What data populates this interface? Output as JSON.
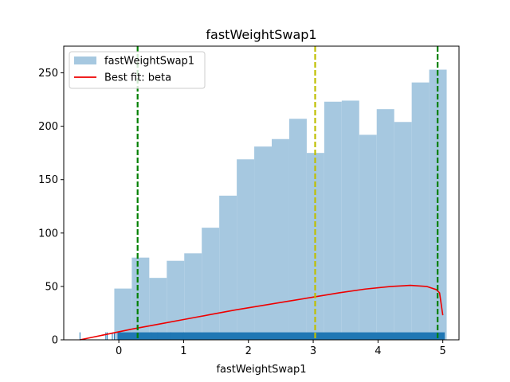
{
  "chart_data": {
    "type": "bar",
    "title": "fastWeightSwap1",
    "xlabel": "fastWeightSwap1",
    "ylabel": "",
    "xlim": [
      -0.85,
      5.25
    ],
    "ylim": [
      0,
      275
    ],
    "xticks": [
      0,
      1,
      2,
      3,
      4,
      5
    ],
    "yticks": [
      0,
      50,
      100,
      150,
      200,
      250
    ],
    "grid": false,
    "legend_position": "top-left",
    "histogram": {
      "name": "fastWeightSwap1",
      "color": "#a6c8e0",
      "bin_edges": [
        -0.07,
        0.2,
        0.47,
        0.74,
        1.01,
        1.28,
        1.55,
        1.82,
        2.09,
        2.36,
        2.63,
        2.9,
        3.17,
        3.44,
        3.71,
        3.98,
        4.25,
        4.52,
        4.79,
        5.06
      ],
      "counts": [
        48,
        77,
        58,
        74,
        81,
        105,
        135,
        169,
        181,
        188,
        207,
        175,
        223,
        224,
        192,
        216,
        204,
        241,
        253
      ]
    },
    "fit_curve": {
      "name": "Best fit: beta",
      "color": "#ee0000",
      "x": [
        -0.6,
        -0.2,
        0.2,
        0.6,
        1.0,
        1.4,
        1.8,
        2.2,
        2.6,
        3.0,
        3.4,
        3.8,
        4.2,
        4.5,
        4.75,
        4.9,
        4.95,
        5.0
      ],
      "y": [
        0,
        5,
        10,
        14.5,
        19,
        23.5,
        28,
        32,
        36,
        40,
        44,
        47.5,
        50,
        51,
        50,
        47,
        44,
        23
      ]
    },
    "rug": {
      "color": "#1f77b4",
      "dense_range": [
        -0.02,
        5.03
      ],
      "height": 7,
      "sparse_x": [
        -0.6,
        -0.2,
        -0.18,
        -0.1,
        -0.07,
        0.5,
        0.6,
        0.8,
        1.0
      ]
    },
    "vlines": [
      {
        "x": 0.29,
        "color": "#008000"
      },
      {
        "x": 3.03,
        "color": "#bfbf00"
      },
      {
        "x": 4.92,
        "color": "#008000"
      }
    ],
    "legend": [
      {
        "label": "fastWeightSwap1",
        "kind": "patch",
        "color": "#a6c8e0"
      },
      {
        "label": "Best fit: beta",
        "kind": "line",
        "color": "#ee0000"
      }
    ]
  }
}
